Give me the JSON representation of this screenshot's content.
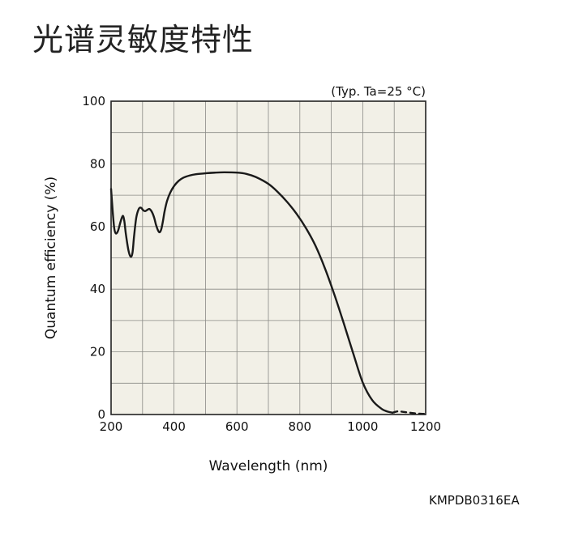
{
  "title": "光谱灵敏度特性",
  "figure_code": "KMPDB0316EA",
  "chart_data": {
    "type": "line",
    "title": "",
    "condition": "(Typ. Ta=25 °C)",
    "xlabel": "Wavelength (nm)",
    "ylabel": "Quantum efficiency (%)",
    "xlim": [
      200,
      1200
    ],
    "ylim": [
      0,
      100
    ],
    "x_ticks": [
      200,
      400,
      600,
      800,
      1000,
      1200
    ],
    "y_ticks": [
      0,
      20,
      40,
      60,
      80,
      100
    ],
    "x_minor_step": 100,
    "y_minor_step": 10,
    "grid": true,
    "plot_background": "#f2f0e7",
    "line_color": "#1a1a1a",
    "series": [
      {
        "style": "solid",
        "x": [
          200,
          205,
          210,
          215,
          222,
          230,
          237,
          242,
          247,
          255,
          262,
          268,
          273,
          280,
          288,
          295,
          302,
          308,
          315,
          322,
          330,
          337,
          343,
          350,
          355,
          360,
          365,
          370,
          378,
          388,
          400,
          415,
          430,
          450,
          470,
          500,
          530,
          560,
          600,
          630,
          660,
          700,
          730,
          760,
          790,
          820,
          850,
          880,
          910,
          940,
          970,
          1000,
          1030,
          1060,
          1080,
          1095
        ],
        "y": [
          72,
          65,
          59.5,
          57.8,
          58.6,
          61.5,
          63.4,
          61.8,
          57.6,
          52.5,
          50.4,
          51.6,
          56.8,
          62.8,
          65.6,
          66,
          65.2,
          64.9,
          65.3,
          65.6,
          64.6,
          62.8,
          60.5,
          58.6,
          58.2,
          59.3,
          61.8,
          64.8,
          68.2,
          70.8,
          72.9,
          74.6,
          75.6,
          76.3,
          76.7,
          77,
          77.2,
          77.3,
          77.2,
          76.8,
          75.8,
          73.6,
          71,
          67.8,
          64,
          59.4,
          53.8,
          46.6,
          38.2,
          29,
          19.4,
          10.2,
          4.6,
          1.8,
          0.9,
          0.6
        ]
      },
      {
        "style": "dashed",
        "x": [
          1095,
          1110,
          1125,
          1140,
          1155,
          1170,
          1185,
          1200
        ],
        "y": [
          0.6,
          1.0,
          0.9,
          0.7,
          0.5,
          0.35,
          0.25,
          0.2
        ]
      }
    ]
  }
}
